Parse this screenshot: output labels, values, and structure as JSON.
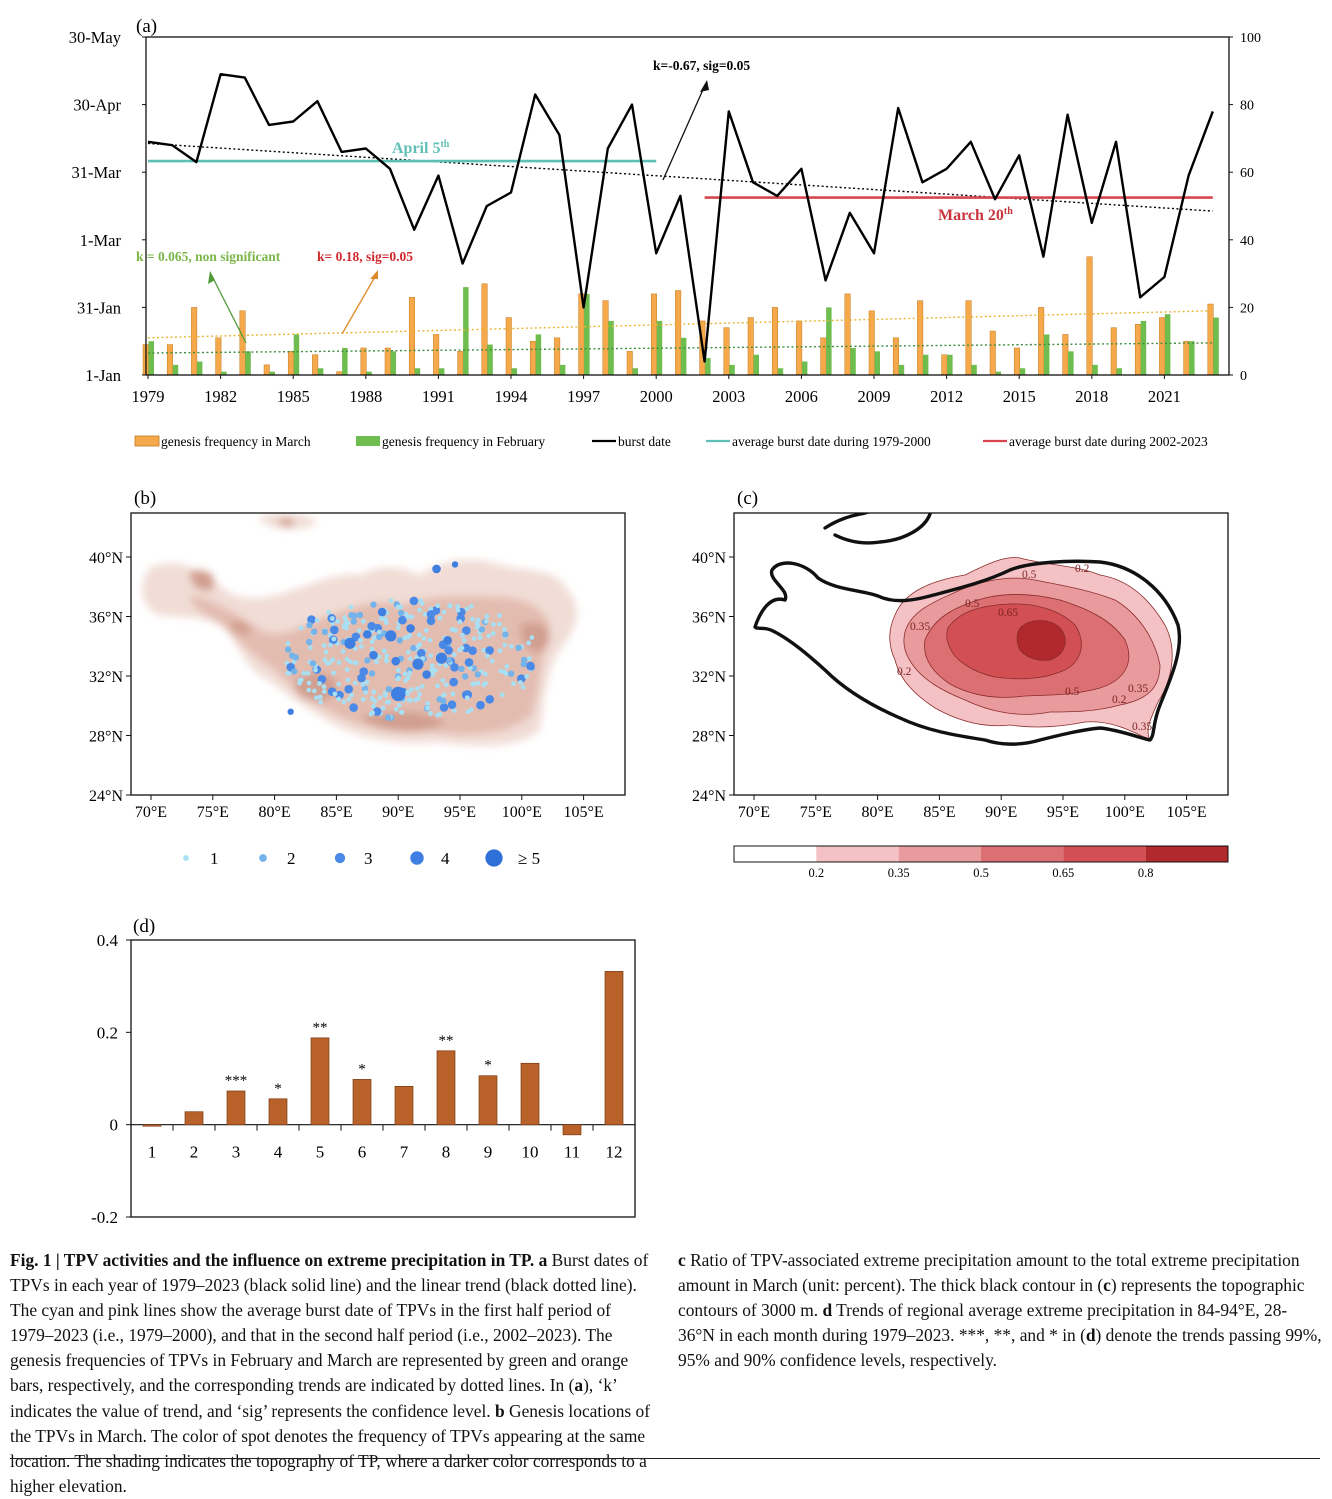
{
  "colors": {
    "march_bar": "#f5a94a",
    "february_bar": "#6fbd4f",
    "burst_line": "#000000",
    "avg_early": "#5fbfb6",
    "avg_late": "#d7464f",
    "trend_green_label": "#7ab648",
    "trend_red_label": "#d0282c",
    "trend_march_line": "#e9b534",
    "trend_feb_line": "#3e8e3e",
    "monthly_bar": "#b8622a",
    "topo_light": "#f1ddd6",
    "topo_mid": "#e3bcb0",
    "topo_dark": "#d19f90",
    "dot_light": "#a9dff2",
    "dot_dark": "#3f7fe2"
  },
  "chart_data": [
    {
      "id": "a",
      "panel_label": "(a)",
      "type": "bar+line",
      "x": [
        1979,
        1980,
        1981,
        1982,
        1983,
        1984,
        1985,
        1986,
        1987,
        1988,
        1989,
        1990,
        1991,
        1992,
        1993,
        1994,
        1995,
        1996,
        1997,
        1998,
        1999,
        2000,
        2001,
        2002,
        2003,
        2004,
        2005,
        2006,
        2007,
        2008,
        2009,
        2010,
        2011,
        2012,
        2013,
        2014,
        2015,
        2016,
        2017,
        2018,
        2019,
        2020,
        2021,
        2022,
        2023
      ],
      "x_ticks": [
        "1979",
        "1982",
        "1985",
        "1988",
        "1991",
        "1994",
        "1997",
        "2000",
        "2003",
        "2006",
        "2009",
        "2012",
        "2015",
        "2018",
        "2021"
      ],
      "y_left_ticks": [
        "1-Jan",
        "31-Jan",
        "1-Mar",
        "31-Mar",
        "30-Apr",
        "30-May"
      ],
      "y_right_ticks": [
        "0",
        "20",
        "40",
        "60",
        "80",
        "100"
      ],
      "y_right_range": [
        0,
        100
      ],
      "series": [
        {
          "name": "genesis frequency in March",
          "type": "bar",
          "axis": "right",
          "values": [
            9,
            9,
            20,
            11,
            19,
            3,
            7,
            6,
            1,
            8,
            8,
            23,
            12,
            7,
            27,
            17,
            10,
            11,
            24,
            22,
            7,
            24,
            25,
            16,
            14,
            17,
            20,
            16,
            11,
            24,
            19,
            11,
            22,
            6,
            22,
            13,
            8,
            20,
            12,
            35,
            14,
            15,
            17,
            10,
            21
          ]
        },
        {
          "name": "genesis frequency in February",
          "type": "bar",
          "axis": "right",
          "values": [
            10,
            3,
            4,
            1,
            7,
            1,
            12,
            2,
            8,
            1,
            7,
            2,
            2,
            26,
            9,
            2,
            12,
            3,
            24,
            16,
            2,
            16,
            11,
            5,
            3,
            6,
            2,
            4,
            20,
            8,
            7,
            3,
            6,
            6,
            3,
            1,
            2,
            12,
            7,
            3,
            2,
            16,
            18,
            10,
            17
          ]
        },
        {
          "name": "burst date",
          "type": "line",
          "axis": "right",
          "values": [
            69,
            68,
            63,
            89,
            88,
            74,
            75,
            81,
            66,
            67,
            61,
            43,
            59,
            33,
            50,
            54,
            83,
            71,
            20,
            67,
            80,
            36,
            53,
            4,
            78,
            57,
            53,
            61,
            28,
            48,
            36,
            79,
            57,
            61,
            69,
            52,
            65,
            35,
            77,
            45,
            69,
            23,
            29,
            59,
            78
          ]
        },
        {
          "name": "average burst date during 1979-2000",
          "type": "hline",
          "axis": "right",
          "x_range": [
            1979,
            2000
          ],
          "value": 63.3
        },
        {
          "name": "average burst date during 2002-2023",
          "type": "hline",
          "axis": "right",
          "x_range": [
            2002,
            2023
          ],
          "value": 52.5
        }
      ],
      "trend_lines": [
        {
          "series": "burst date",
          "from": [
            1979,
            68.5
          ],
          "to": [
            2023,
            48.5
          ]
        },
        {
          "series": "genesis frequency in March",
          "from": [
            1979,
            11
          ],
          "to": [
            2023,
            19
          ]
        },
        {
          "series": "genesis frequency in February",
          "from": [
            1979,
            6.5
          ],
          "to": [
            2023,
            9.5
          ]
        }
      ],
      "annotations": {
        "burst_trend": "k=-0.67, sig=0.05",
        "early_avg": "April 5",
        "early_avg_sup": "th",
        "late_avg": "March 20",
        "late_avg_sup": "th",
        "feb_trend": "k = 0.065, non significant",
        "mar_trend": "k= 0.18, sig=0.05"
      },
      "legend_position": "bottom"
    },
    {
      "id": "b",
      "panel_label": "(b)",
      "type": "map-scatter",
      "x_ticks": [
        "70°E",
        "75°E",
        "80°E",
        "85°E",
        "90°E",
        "95°E",
        "100°E",
        "105°E"
      ],
      "y_ticks": [
        "40°N",
        "36°N",
        "32°N",
        "28°N",
        "24°N"
      ],
      "legend": [
        "1",
        "2",
        "3",
        "4",
        "≥ 5"
      ],
      "large_points": [
        {
          "lon": 90.0,
          "lat": 30.8,
          "count": 5
        },
        {
          "lon": 89.4,
          "lat": 34.7,
          "count": 4
        },
        {
          "lon": 91.6,
          "lat": 32.8,
          "count": 4
        },
        {
          "lon": 86.1,
          "lat": 34.2,
          "count": 4
        },
        {
          "lon": 93.5,
          "lat": 33.2,
          "count": 4
        },
        {
          "lon": 88.7,
          "lat": 36.3,
          "count": 3
        },
        {
          "lon": 87.5,
          "lat": 34.8,
          "count": 3
        },
        {
          "lon": 91.0,
          "lat": 35.2,
          "count": 3
        },
        {
          "lon": 94.0,
          "lat": 34.4,
          "count": 3
        },
        {
          "lon": 92.3,
          "lat": 32.1,
          "count": 3
        },
        {
          "lon": 89.8,
          "lat": 33.0,
          "count": 3
        },
        {
          "lon": 88.0,
          "lat": 33.4,
          "count": 3
        },
        {
          "lon": 93.1,
          "lat": 39.2,
          "count": 3
        },
        {
          "lon": 94.6,
          "lat": 39.5,
          "count": 2
        },
        {
          "lon": 81.3,
          "lat": 29.6,
          "count": 2
        }
      ]
    },
    {
      "id": "c",
      "panel_label": "(c)",
      "type": "map-contour",
      "x_ticks": [
        "70°E",
        "75°E",
        "80°E",
        "85°E",
        "90°E",
        "95°E",
        "100°E",
        "105°E"
      ],
      "y_ticks": [
        "40°N",
        "36°N",
        "32°N",
        "28°N",
        "24°N"
      ],
      "contour_levels": [
        0.2,
        0.35,
        0.5,
        0.65,
        0.8
      ],
      "colorbar_labels": [
        "0.2",
        "0.35",
        "0.5",
        "0.65",
        "0.8"
      ],
      "contour_labels": [
        "0.2",
        "0.35",
        "0.5",
        "0.65",
        "0.35",
        "0.5",
        "0.2",
        "0.35",
        "0.2",
        "0.5"
      ]
    },
    {
      "id": "d",
      "panel_label": "(d)",
      "type": "bar",
      "categories": [
        "1",
        "2",
        "3",
        "4",
        "5",
        "6",
        "7",
        "8",
        "9",
        "10",
        "11",
        "12"
      ],
      "values": [
        -0.003,
        0.028,
        0.073,
        0.056,
        0.188,
        0.098,
        0.083,
        0.16,
        0.106,
        0.133,
        -0.022,
        0.332
      ],
      "significance": [
        "",
        "",
        "***",
        "*",
        "**",
        "*",
        "",
        "**",
        "*",
        "",
        "",
        ""
      ],
      "y_ticks": [
        "0.4",
        "0.2",
        "0",
        "-0.2"
      ],
      "ylim": [
        -0.2,
        0.4
      ]
    }
  ],
  "legend_a": [
    "genesis frequency in March",
    "genesis frequency in February",
    "burst date",
    "average burst date during 1979-2000",
    "average burst date during 2002-2023"
  ],
  "caption": {
    "heading": "Fig. 1 | TPV activities and the influence on extreme precipitation in TP.",
    "p_a": " Burst dates of TPVs in each year of 1979–2023 (black solid line) and the linear trend (black dotted line). The cyan and pink lines show the average burst date of TPVs in the first half period of 1979–2023 (i.e., 1979–2000), and that in the second half period (i.e., 2002–2023). The genesis frequencies of TPVs in February and March are represented by green and orange bars, respectively, and the corresponding trends are indicated by dotted lines. In (",
    "p_a2": "), ‘k’ indicates the value of trend, and ‘sig’ represents the confidence level.",
    "p_b": " Genesis locations of the TPVs in March. The color of spot denotes the frequency of TPVs appearing at the same location. The shading indicates the topography of TP, where a darker color corresponds to a higher elevation.",
    "p_c": " Ratio of TPV-associated extreme precipitation amount to the total extreme precipitation amount in March (unit: percent). The thick black contour in (",
    "p_c2": ") represents the topographic contours of 3000 m.",
    "p_d": " Trends of regional average extreme precipitation in 84-94°E, 28-36°N in each month during 1979–2023. ***, **, and * in (",
    "p_d2": ") denote the trends passing 99%, 95% and 90% confidence levels, respectively.",
    "l_a": "a",
    "l_b": "b",
    "l_c": "c",
    "l_d": "d"
  }
}
